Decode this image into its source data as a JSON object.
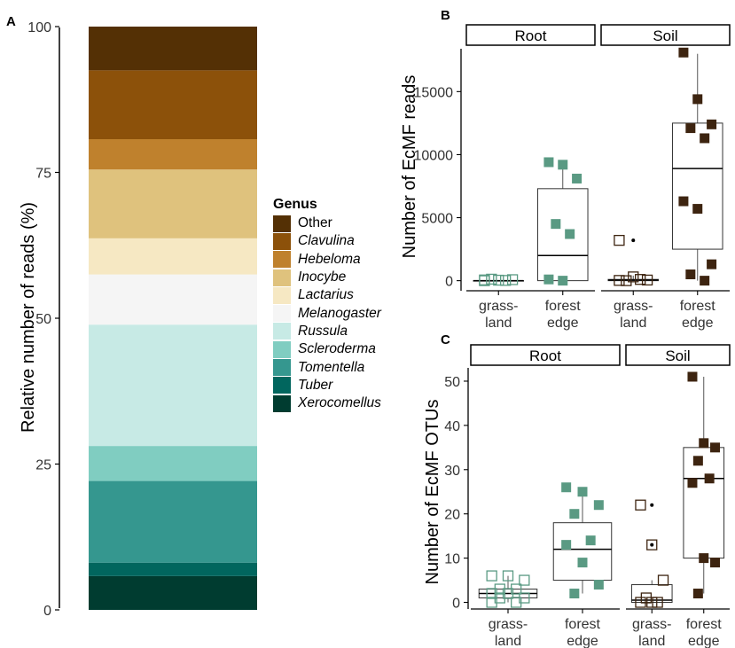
{
  "chart_data": [
    {
      "panel": "A",
      "type": "bar",
      "stacked": true,
      "ylabel": "Relative number of reads (%)",
      "xlabel": "",
      "ylim": [
        0,
        100
      ],
      "yticks": [
        "0",
        "25",
        "50",
        "75",
        "100"
      ],
      "legend": {
        "title": "Genus",
        "placement": "right",
        "entries": [
          {
            "name": "Other",
            "color": "#543005",
            "italic": false
          },
          {
            "name": "Clavulina",
            "color": "#8C510A",
            "italic": true
          },
          {
            "name": "Hebeloma",
            "color": "#BF812D",
            "italic": true
          },
          {
            "name": "Inocybe",
            "color": "#DFC27D",
            "italic": true
          },
          {
            "name": "Lactarius",
            "color": "#F6E8C3",
            "italic": true
          },
          {
            "name": "Melanogaster",
            "color": "#F5F5F5",
            "italic": true
          },
          {
            "name": "Russula",
            "color": "#C7EAE5",
            "italic": true
          },
          {
            "name": "Scleroderma",
            "color": "#80CDC1",
            "italic": true
          },
          {
            "name": "Tomentella",
            "color": "#35978F",
            "italic": true
          },
          {
            "name": "Tuber",
            "color": "#01665E",
            "italic": true
          },
          {
            "name": "Xerocomellus",
            "color": "#003C30",
            "italic": true
          }
        ]
      },
      "series": [
        {
          "name": "Xerocomellus",
          "value": 5.8
        },
        {
          "name": "Tuber",
          "value": 2.3
        },
        {
          "name": "Tomentella",
          "value": 14.0
        },
        {
          "name": "Scleroderma",
          "value": 6.0
        },
        {
          "name": "Russula",
          "value": 20.8
        },
        {
          "name": "Melanogaster",
          "value": 8.6
        },
        {
          "name": "Lactarius",
          "value": 6.2
        },
        {
          "name": "Inocybe",
          "value": 11.8
        },
        {
          "name": "Hebeloma",
          "value": 5.2
        },
        {
          "name": "Clavulina",
          "value": 11.8
        },
        {
          "name": "Other",
          "value": 7.5
        }
      ]
    },
    {
      "panel": "B",
      "type": "box",
      "ylabel": "Number of EcMF reads",
      "ylim": [
        -800,
        18400
      ],
      "yticks": [
        0,
        5000,
        10000,
        15000
      ],
      "facets": [
        {
          "strip": "Root",
          "groups": [
            {
              "label_line1": "grass-",
              "label_line2": "land",
              "color": "#5A9A83",
              "filled": false,
              "box": {
                "q1": 0,
                "median": 0,
                "q3": 0,
                "whisker_low": 0,
                "whisker_high": 0
              },
              "points": [
                0,
                40,
                80,
                120,
                20,
                60
              ]
            },
            {
              "label_line1": "forest",
              "label_line2": "edge",
              "color": "#5A9A83",
              "filled": true,
              "box": {
                "q1": 0,
                "median": 2000,
                "q3": 7300,
                "whisker_low": 0,
                "whisker_high": 9500
              },
              "points": [
                9400,
                9200,
                8100,
                4500,
                3700,
                100,
                0
              ]
            }
          ]
        },
        {
          "strip": "Soil",
          "groups": [
            {
              "label_line1": "grass-",
              "label_line2": "land",
              "color": "#3D2410",
              "filled": false,
              "box": {
                "q1": 0,
                "median": 50,
                "q3": 100,
                "whisker_low": 0,
                "whisker_high": 400
              },
              "points": [
                3200,
                300,
                50,
                0,
                100,
                20
              ],
              "outliers": [
                3200
              ]
            },
            {
              "label_line1": "forest",
              "label_line2": "edge",
              "color": "#3D2410",
              "filled": true,
              "box": {
                "q1": 2500,
                "median": 8900,
                "q3": 12500,
                "whisker_low": 0,
                "whisker_high": 18000
              },
              "points": [
                18100,
                14400,
                12400,
                12100,
                11300,
                6300,
                5700,
                1300,
                500,
                0
              ]
            }
          ]
        }
      ]
    },
    {
      "panel": "C",
      "type": "box",
      "ylabel": "Number of EcMF OTUs",
      "ylim": [
        -1.5,
        53
      ],
      "yticks": [
        0,
        10,
        20,
        30,
        40,
        50
      ],
      "facets": [
        {
          "strip": "Root",
          "groups": [
            {
              "label_line1": "grass-",
              "label_line2": "land",
              "color": "#5A9A83",
              "filled": false,
              "box": {
                "q1": 1,
                "median": 2,
                "q3": 3,
                "whisker_low": 0,
                "whisker_high": 6
              },
              "points": [
                6,
                6,
                5,
                3,
                3,
                2,
                2,
                1,
                1,
                0,
                0
              ]
            },
            {
              "label_line1": "forest",
              "label_line2": "edge",
              "color": "#5A9A83",
              "filled": true,
              "box": {
                "q1": 5,
                "median": 12,
                "q3": 18,
                "whisker_low": 2,
                "whisker_high": 26
              },
              "points": [
                26,
                25,
                22,
                20,
                14,
                13,
                9,
                4,
                2
              ]
            }
          ]
        },
        {
          "strip": "Soil",
          "groups": [
            {
              "label_line1": "grass-",
              "label_line2": "land",
              "color": "#3D2410",
              "filled": false,
              "box": {
                "q1": 0,
                "median": 0.5,
                "q3": 4,
                "whisker_low": 0,
                "whisker_high": 5
              },
              "points": [
                22,
                13,
                5,
                1,
                0,
                0,
                0
              ],
              "outliers": [
                22,
                13
              ]
            },
            {
              "label_line1": "forest",
              "label_line2": "edge",
              "color": "#3D2410",
              "filled": true,
              "box": {
                "q1": 10,
                "median": 28,
                "q3": 35,
                "whisker_low": 2,
                "whisker_high": 51
              },
              "points": [
                51,
                36,
                35,
                32,
                28,
                27,
                10,
                9,
                2
              ]
            }
          ]
        }
      ]
    }
  ]
}
